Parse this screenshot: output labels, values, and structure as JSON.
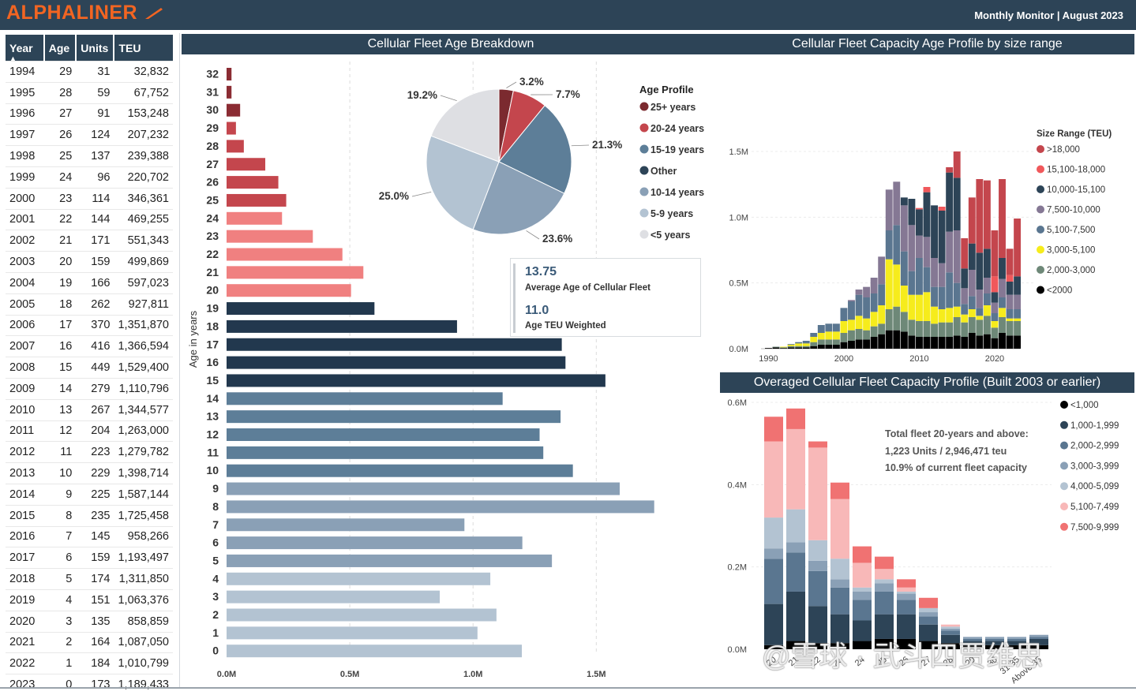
{
  "header": {
    "logo": "ALPHALINER",
    "monitor": "Monthly Monitor | August 2023"
  },
  "colors": {
    "header_bg": "#2d4457",
    "logo": "#f26522"
  },
  "table": {
    "columns": [
      "Year",
      "Age",
      "Units",
      "TEU"
    ],
    "rows": [
      [
        "1994",
        "29",
        "31",
        "32,832"
      ],
      [
        "1995",
        "28",
        "59",
        "67,752"
      ],
      [
        "1996",
        "27",
        "91",
        "153,248"
      ],
      [
        "1997",
        "26",
        "124",
        "207,232"
      ],
      [
        "1998",
        "25",
        "137",
        "239,388"
      ],
      [
        "1999",
        "24",
        "96",
        "220,702"
      ],
      [
        "2000",
        "23",
        "114",
        "346,361"
      ],
      [
        "2001",
        "22",
        "144",
        "469,255"
      ],
      [
        "2002",
        "21",
        "171",
        "551,343"
      ],
      [
        "2003",
        "20",
        "159",
        "499,869"
      ],
      [
        "2004",
        "19",
        "166",
        "597,023"
      ],
      [
        "2005",
        "18",
        "262",
        "927,811"
      ],
      [
        "2006",
        "17",
        "370",
        "1,351,870"
      ],
      [
        "2007",
        "16",
        "416",
        "1,366,594"
      ],
      [
        "2008",
        "15",
        "449",
        "1,529,400"
      ],
      [
        "2009",
        "14",
        "279",
        "1,110,796"
      ],
      [
        "2010",
        "13",
        "267",
        "1,344,577"
      ],
      [
        "2011",
        "12",
        "204",
        "1,263,000"
      ],
      [
        "2012",
        "11",
        "223",
        "1,279,782"
      ],
      [
        "2013",
        "10",
        "229",
        "1,398,714"
      ],
      [
        "2014",
        "9",
        "225",
        "1,587,144"
      ],
      [
        "2015",
        "8",
        "235",
        "1,725,458"
      ],
      [
        "2016",
        "7",
        "145",
        "958,266"
      ],
      [
        "2017",
        "6",
        "159",
        "1,193,497"
      ],
      [
        "2018",
        "5",
        "174",
        "1,311,850"
      ],
      [
        "2019",
        "4",
        "151",
        "1,063,376"
      ],
      [
        "2020",
        "3",
        "135",
        "858,859"
      ],
      [
        "2021",
        "2",
        "164",
        "1,087,050"
      ],
      [
        "2022",
        "1",
        "184",
        "1,010,799"
      ],
      [
        "2023",
        "0",
        "173",
        "1,189,433"
      ]
    ]
  },
  "kpi": {
    "avg_age": "13.75",
    "avg_age_label": "Average Age of Cellular Fleet",
    "teu_weighted": "11.0",
    "teu_weighted_label": "Age TEU Weighted"
  },
  "overaged_note": {
    "line1": "Total fleet 20-years and above:",
    "line2": "1,223 Units / 2,946,471 teu",
    "line3": "10.9% of current fleet capacity"
  },
  "watermark": "@雪球 · 武斗四贾维思",
  "chart_data": [
    {
      "type": "bar",
      "title": "Cellular Fleet Age Breakdown",
      "orientation": "horizontal",
      "ylabel": "Age in years",
      "xlim": [
        0,
        1800000
      ],
      "xticks": [
        "0.0M",
        "0.5M",
        "1.0M",
        "1.5M"
      ],
      "xtick_values": [
        0,
        500000,
        1000000,
        1500000
      ],
      "categories": [
        "32",
        "31",
        "30",
        "29",
        "28",
        "27",
        "26",
        "25",
        "24",
        "23",
        "22",
        "21",
        "20",
        "19",
        "18",
        "17",
        "16",
        "15",
        "14",
        "13",
        "12",
        "11",
        "10",
        "9",
        "8",
        "7",
        "6",
        "5",
        "4",
        "3",
        "2",
        "1",
        "0"
      ],
      "values": [
        20000,
        20000,
        55000,
        38000,
        70000,
        157000,
        210000,
        242000,
        225000,
        350000,
        470000,
        555000,
        505000,
        600000,
        935000,
        1360000,
        1375000,
        1537000,
        1120000,
        1355000,
        1270000,
        1285000,
        1405000,
        1595000,
        1735000,
        965000,
        1200000,
        1320000,
        1070000,
        865000,
        1095000,
        1018000,
        1198000
      ],
      "colors": [
        "#8b2c33",
        "#8b2c33",
        "#8b2c33",
        "#c4464d",
        "#c4464d",
        "#c4464d",
        "#c4464d",
        "#c4464d",
        "#f08080",
        "#f08080",
        "#f08080",
        "#f08080",
        "#f08080",
        "#22384e",
        "#22384e",
        "#22384e",
        "#22384e",
        "#22384e",
        "#5d7e98",
        "#5d7e98",
        "#5d7e98",
        "#5d7e98",
        "#5d7e98",
        "#8aa0b6",
        "#8aa0b6",
        "#8aa0b6",
        "#8aa0b6",
        "#8aa0b6",
        "#b3c3d2",
        "#b3c3d2",
        "#b3c3d2",
        "#b3c3d2",
        "#b3c3d2"
      ]
    },
    {
      "type": "pie",
      "legend_title": "Age Profile",
      "legend_position": "right",
      "slices": [
        {
          "name": "25+ years",
          "value": 3.2,
          "label": "3.2%",
          "color": "#7b2a2f"
        },
        {
          "name": "20-24 years",
          "value": 7.7,
          "label": "7.7%",
          "color": "#c4464d"
        },
        {
          "name": "15-19 years",
          "value": 21.3,
          "label": "21.3%",
          "color": "#5d7e98"
        },
        {
          "name": "10-14 years",
          "value": 23.6,
          "label": "23.6%",
          "color": "#8aa0b6"
        },
        {
          "name": "5-9 years",
          "value": 25.0,
          "label": "25.0%",
          "color": "#b3c3d2"
        },
        {
          "name": "<5 years",
          "value": 19.2,
          "label": "19.2%",
          "color": "#dedfe3"
        }
      ],
      "legend": [
        {
          "name": "25+ years",
          "color": "#7b2a2f"
        },
        {
          "name": "20-24 years",
          "color": "#c4464d"
        },
        {
          "name": "15-19 years",
          "color": "#5d7e98"
        },
        {
          "name": "Other",
          "color": "#2d4457"
        },
        {
          "name": "10-14 years",
          "color": "#8aa0b6"
        },
        {
          "name": "5-9 years",
          "color": "#b3c3d2"
        },
        {
          "name": "<5 years",
          "color": "#dedfe3"
        }
      ]
    },
    {
      "type": "bar",
      "stacked": true,
      "title": "Cellular Fleet Capacity Age Profile by size range",
      "legend_title": "Size Range (TEU)",
      "legend_position": "right",
      "xticks": [
        "1990",
        "2000",
        "2010",
        "2020"
      ],
      "ylim": [
        0,
        1800000
      ],
      "yticks": [
        "0.0M",
        "0.5M",
        "1.0M",
        "1.5M"
      ],
      "ytick_values": [
        0,
        500000,
        1000000,
        1500000
      ],
      "categories": [
        "1990",
        "1991",
        "1992",
        "1993",
        "1994",
        "1995",
        "1996",
        "1997",
        "1998",
        "1999",
        "2000",
        "2001",
        "2002",
        "2003",
        "2004",
        "2005",
        "2006",
        "2007",
        "2008",
        "2009",
        "2010",
        "2011",
        "2012",
        "2013",
        "2014",
        "2015",
        "2016",
        "2017",
        "2018",
        "2019",
        "2020",
        "2021",
        "2022",
        "2023"
      ],
      "series": [
        {
          "name": ">18,000",
          "color": "#c4464d",
          "values": [
            0,
            0,
            0,
            0,
            0,
            0,
            0,
            0,
            0,
            0,
            0,
            0,
            0,
            0,
            0,
            0,
            0,
            0,
            0,
            0,
            0,
            0,
            0,
            0,
            40000,
            200000,
            230000,
            350000,
            560000,
            520000,
            350000,
            600000,
            200000,
            440000
          ]
        },
        {
          "name": "15,100-18,000",
          "color": "#f0585b",
          "values": [
            0,
            0,
            0,
            0,
            0,
            0,
            0,
            0,
            0,
            0,
            0,
            0,
            0,
            0,
            0,
            0,
            0,
            0,
            0,
            0,
            10000,
            40000,
            0,
            30000,
            0,
            0,
            0,
            0,
            0,
            0,
            120000,
            0,
            50000,
            0
          ]
        },
        {
          "name": "10,000-15,100",
          "color": "#2d4457",
          "values": [
            0,
            0,
            0,
            0,
            0,
            0,
            0,
            0,
            0,
            0,
            0,
            0,
            0,
            0,
            0,
            0,
            0,
            0,
            60000,
            200000,
            200000,
            340000,
            400000,
            400000,
            450000,
            400000,
            150000,
            200000,
            280000,
            220000,
            80000,
            160000,
            100000,
            140000
          ]
        },
        {
          "name": "7,500-10,000",
          "color": "#857894",
          "values": [
            0,
            0,
            0,
            0,
            0,
            0,
            0,
            0,
            0,
            0,
            0,
            10000,
            40000,
            80000,
            120000,
            210000,
            310000,
            330000,
            350000,
            350000,
            170000,
            230000,
            220000,
            180000,
            310000,
            400000,
            120000,
            200000,
            140000,
            120000,
            80000,
            140000,
            110000,
            110000
          ]
        },
        {
          "name": "5,100-7,500",
          "color": "#5a7690",
          "values": [
            0,
            0,
            0,
            5000,
            10000,
            20000,
            30000,
            60000,
            60000,
            60000,
            100000,
            140000,
            160000,
            160000,
            140000,
            160000,
            220000,
            300000,
            260000,
            180000,
            280000,
            190000,
            150000,
            170000,
            270000,
            180000,
            80000,
            100000,
            60000,
            90000,
            60000,
            80000,
            70000,
            70000
          ]
        },
        {
          "name": "3,000-5,100",
          "color": "#f6ec1c",
          "values": [
            0,
            0,
            5000,
            10000,
            20000,
            20000,
            40000,
            50000,
            60000,
            60000,
            90000,
            80000,
            100000,
            90000,
            110000,
            140000,
            380000,
            320000,
            200000,
            190000,
            200000,
            220000,
            130000,
            100000,
            110000,
            80000,
            60000,
            60000,
            30000,
            80000,
            50000,
            70000,
            20000,
            20000
          ]
        },
        {
          "name": "2,000-3,000",
          "color": "#6e8878",
          "values": [
            0,
            5000,
            5000,
            10000,
            10000,
            10000,
            30000,
            40000,
            40000,
            40000,
            70000,
            80000,
            80000,
            70000,
            80000,
            80000,
            160000,
            180000,
            150000,
            120000,
            120000,
            120000,
            100000,
            110000,
            110000,
            140000,
            110000,
            120000,
            120000,
            140000,
            80000,
            120000,
            110000,
            110000
          ]
        },
        {
          "name": "<2000",
          "color": "#000000",
          "values": [
            5000,
            10000,
            5000,
            10000,
            10000,
            10000,
            20000,
            30000,
            30000,
            30000,
            50000,
            60000,
            70000,
            70000,
            90000,
            110000,
            140000,
            140000,
            130000,
            100000,
            90000,
            90000,
            90000,
            90000,
            90000,
            100000,
            90000,
            120000,
            100000,
            110000,
            80000,
            120000,
            100000,
            100000
          ]
        }
      ]
    },
    {
      "type": "bar",
      "stacked": true,
      "title": "Overaged Cellular Fleet Capacity Profile (Built 2003 or earlier)",
      "legend_position": "right",
      "ylim": [
        0,
        600000
      ],
      "yticks": [
        "0.0M",
        "0.2M",
        "0.4M",
        "0.6M"
      ],
      "ytick_values": [
        0,
        200000,
        400000,
        600000
      ],
      "categories": [
        "20",
        "21",
        "22",
        "23",
        "24",
        "25",
        "26",
        "27",
        "28",
        "29",
        "30",
        "31-35",
        "Above 35"
      ],
      "x_labels_visible": [
        "20",
        "21",
        "22",
        "23",
        "24",
        "25",
        "26",
        "27",
        "28",
        "29",
        "30",
        "31-35",
        "Above 35"
      ],
      "series": [
        {
          "name": "<1,000",
          "color": "#000000",
          "values": [
            10000,
            20000,
            15000,
            15000,
            20000,
            25000,
            25000,
            20000,
            15000,
            10000,
            10000,
            10000,
            10000
          ]
        },
        {
          "name": "1,000-1,999",
          "color": "#2d4457",
          "values": [
            100000,
            120000,
            90000,
            70000,
            50000,
            60000,
            60000,
            40000,
            20000,
            10000,
            10000,
            10000,
            15000
          ]
        },
        {
          "name": "2,000-2,999",
          "color": "#5a7690",
          "values": [
            110000,
            95000,
            85000,
            65000,
            50000,
            55000,
            35000,
            20000,
            10000,
            5000,
            5000,
            5000,
            5000
          ]
        },
        {
          "name": "3,000-3,999",
          "color": "#8aa0b6",
          "values": [
            25000,
            25000,
            25000,
            20000,
            20000,
            20000,
            15000,
            10000,
            5000,
            5000,
            5000,
            5000,
            5000
          ]
        },
        {
          "name": "4,000-5,099",
          "color": "#b3c3d2",
          "values": [
            75000,
            80000,
            50000,
            50000,
            10000,
            10000,
            5000,
            10000,
            5000,
            0,
            0,
            0,
            0
          ]
        },
        {
          "name": "5,100-7,499",
          "color": "#f8b8b8",
          "values": [
            185000,
            195000,
            225000,
            145000,
            60000,
            25000,
            10000,
            0,
            5000,
            0,
            0,
            0,
            0
          ]
        },
        {
          "name": "7,500-9,999",
          "color": "#f07272",
          "values": [
            60000,
            50000,
            15000,
            40000,
            40000,
            30000,
            20000,
            25000,
            0,
            0,
            0,
            0,
            0
          ]
        }
      ]
    }
  ]
}
